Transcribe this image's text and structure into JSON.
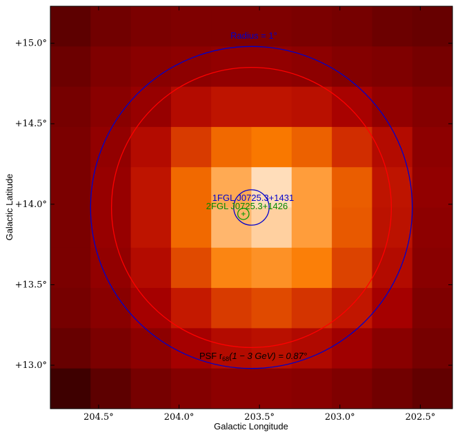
{
  "chart_data": {
    "type": "heatmap",
    "title": "",
    "xlabel": "Galactic Longitude",
    "ylabel": "Galactic Latitude",
    "xlim": [
      204.8,
      202.3
    ],
    "ylim": [
      12.73,
      15.23
    ],
    "x_reversed": true,
    "grid": false,
    "xticks": [
      {
        "value": 204.5,
        "label": "204.5°"
      },
      {
        "value": 204.0,
        "label": "204.0°"
      },
      {
        "value": 203.5,
        "label": "203.5°"
      },
      {
        "value": 203.0,
        "label": "203.0°"
      },
      {
        "value": 202.5,
        "label": "202.5°"
      }
    ],
    "yticks": [
      {
        "value": 15.0,
        "label": "+15.0°"
      },
      {
        "value": 14.5,
        "label": "+14.5°"
      },
      {
        "value": 14.0,
        "label": "+14.0°"
      },
      {
        "value": 13.5,
        "label": "+13.5°"
      },
      {
        "value": 13.0,
        "label": "+13.0°"
      }
    ],
    "pixel_grid": {
      "x_start": 204.8,
      "y_start": 15.23,
      "pixel_size": 0.25,
      "rows": 10,
      "cols": 10
    },
    "colormap": [
      "#2a0000",
      "#6a0000",
      "#a50000",
      "#c81c00",
      "#e04a00",
      "#fa7a00",
      "#ffa040",
      "#ffc890",
      "#fff0e0"
    ],
    "intensity": [
      [
        0.1,
        0.14,
        0.16,
        0.17,
        0.17,
        0.17,
        0.16,
        0.15,
        0.13,
        0.12
      ],
      [
        0.13,
        0.17,
        0.19,
        0.2,
        0.21,
        0.21,
        0.2,
        0.18,
        0.17,
        0.15
      ],
      [
        0.15,
        0.19,
        0.22,
        0.3,
        0.34,
        0.34,
        0.32,
        0.26,
        0.21,
        0.18
      ],
      [
        0.16,
        0.21,
        0.3,
        0.46,
        0.58,
        0.62,
        0.56,
        0.42,
        0.3,
        0.2
      ],
      [
        0.16,
        0.22,
        0.34,
        0.58,
        0.78,
        0.94,
        0.74,
        0.55,
        0.34,
        0.21
      ],
      [
        0.16,
        0.22,
        0.34,
        0.58,
        0.82,
        0.9,
        0.74,
        0.54,
        0.33,
        0.2
      ],
      [
        0.16,
        0.21,
        0.3,
        0.5,
        0.66,
        0.7,
        0.64,
        0.48,
        0.3,
        0.19
      ],
      [
        0.15,
        0.19,
        0.25,
        0.36,
        0.46,
        0.5,
        0.44,
        0.35,
        0.25,
        0.17
      ],
      [
        0.12,
        0.16,
        0.2,
        0.25,
        0.3,
        0.32,
        0.29,
        0.24,
        0.19,
        0.15
      ],
      [
        0.04,
        0.1,
        0.15,
        0.18,
        0.2,
        0.2,
        0.19,
        0.17,
        0.14,
        0.11
      ]
    ],
    "overlays": [
      {
        "kind": "circle",
        "name": "radius-circle",
        "center": [
          203.55,
          13.98
        ],
        "radius": 1.0,
        "color": "#0000cc",
        "label": "Radius = 1°"
      },
      {
        "kind": "circle",
        "name": "psf-circle",
        "center": [
          203.55,
          13.98
        ],
        "radius": 0.87,
        "color": "#ff0000",
        "label": "PSF r68(1 − 3 GeV) = 0.87°"
      },
      {
        "kind": "circle",
        "name": "1fgl-circle",
        "center": [
          203.55,
          13.98
        ],
        "radius": 0.11,
        "color": "#0000cc",
        "label": "1FGL J0725.3+1431"
      },
      {
        "kind": "circle",
        "name": "2fgl-circle",
        "center": [
          203.6,
          13.94
        ],
        "radius": 0.035,
        "color": "#009900",
        "label": "2FGL J0725.3+1426"
      }
    ],
    "labels": {
      "radius": "Radius = 1°",
      "fgl1": "1FGL J0725.3+1431",
      "fgl2": "2FGL J0725.3+1426",
      "psf_prefix": "PSF r",
      "psf_sub": "68",
      "psf_suffix": "(1 − 3 GeV) = 0.87°"
    }
  }
}
